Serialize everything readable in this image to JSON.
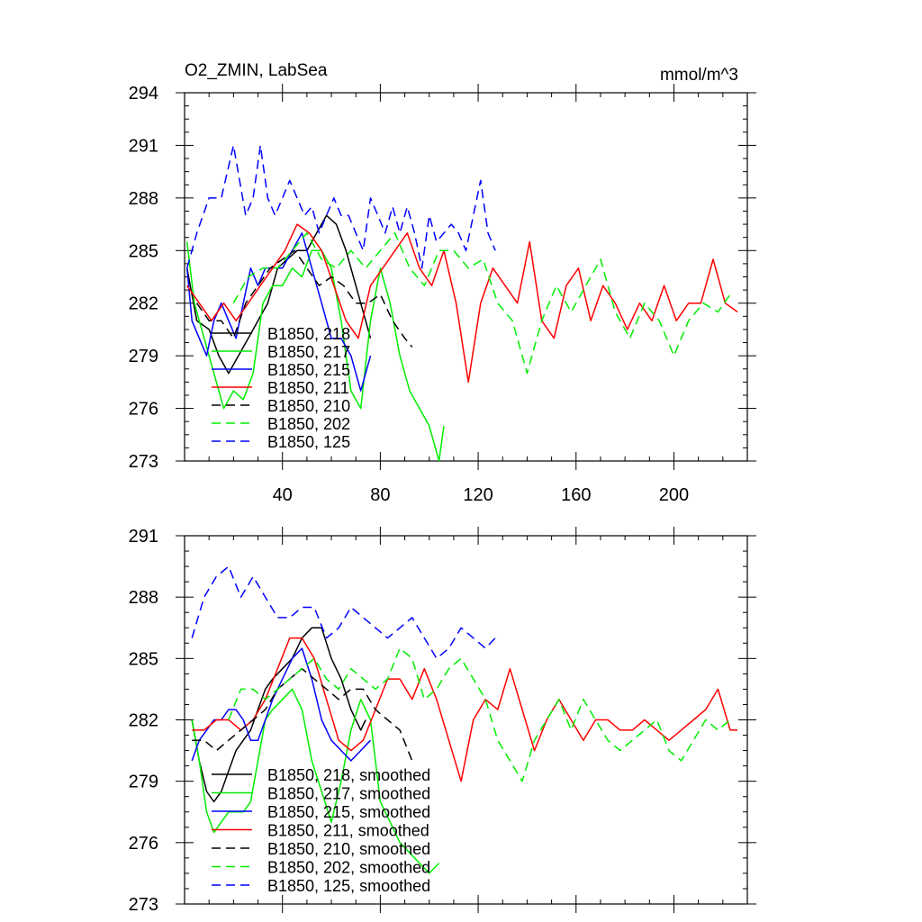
{
  "chart_data": [
    {
      "type": "line",
      "title": "O2_ZMIN, LabSea",
      "units": "mmol/m^3",
      "xlim": [
        0,
        230
      ],
      "ylim": [
        273,
        294
      ],
      "xticks": [
        40,
        80,
        120,
        160,
        200
      ],
      "yticks": [
        273,
        276,
        279,
        282,
        285,
        288,
        291,
        294
      ],
      "legend": "lower-left",
      "series": [
        {
          "name": "B1850, 218",
          "color": "#000000",
          "dash": "solid",
          "x": [
            1,
            5,
            10,
            14,
            18,
            22,
            26,
            30,
            34,
            38,
            42,
            46,
            50,
            54,
            58,
            62,
            66,
            70,
            74,
            76
          ],
          "y": [
            284,
            281,
            280.5,
            279,
            278,
            279,
            280,
            281,
            282,
            284,
            284.5,
            285,
            285,
            286,
            287,
            286.5,
            285,
            283,
            281,
            280
          ]
        },
        {
          "name": "B1850, 217",
          "color": "#00ee00",
          "dash": "solid",
          "x": [
            1,
            4,
            8,
            12,
            16,
            20,
            24,
            28,
            32,
            36,
            40,
            44,
            48,
            52,
            56,
            60,
            64,
            68,
            72,
            76,
            80,
            84,
            88,
            92,
            96,
            100,
            104,
            106
          ],
          "y": [
            285.5,
            282,
            280,
            278,
            276,
            277,
            276.5,
            278,
            282,
            283,
            283,
            284,
            283.5,
            285,
            285,
            284,
            281,
            277,
            276,
            281,
            284,
            282,
            279,
            277,
            276,
            275,
            273,
            275
          ]
        },
        {
          "name": "B1850, 215",
          "color": "#0000ff",
          "dash": "solid",
          "x": [
            1,
            3,
            6,
            9,
            12,
            15,
            18,
            21,
            24,
            27,
            30,
            33,
            36,
            40,
            44,
            48,
            52,
            56,
            60,
            64,
            68,
            72,
            76
          ],
          "y": [
            284,
            281,
            280,
            279,
            281,
            282,
            281,
            280,
            282,
            284,
            283,
            284,
            284,
            284,
            285,
            286,
            284,
            282,
            280,
            280,
            279,
            277,
            279
          ]
        },
        {
          "name": "B1850, 211",
          "color": "#ff0000",
          "dash": "solid",
          "x": [
            1,
            6,
            11,
            16,
            21,
            26,
            31,
            36,
            41,
            46,
            51,
            56,
            61,
            66,
            71,
            76,
            81,
            86,
            91,
            96,
            101,
            106,
            111,
            116,
            121,
            126,
            131,
            136,
            141,
            146,
            151,
            156,
            161,
            166,
            171,
            176,
            181,
            186,
            191,
            196,
            201,
            206,
            211,
            216,
            221,
            226
          ],
          "y": [
            283,
            282,
            281,
            282,
            281,
            282,
            283,
            284,
            285,
            286.5,
            286,
            285,
            283,
            281,
            280,
            283,
            284,
            285,
            286,
            284,
            283,
            285,
            282,
            277.5,
            282,
            284,
            283,
            282,
            285.5,
            281,
            280,
            283,
            284,
            281,
            283,
            282,
            280.5,
            282,
            281,
            283,
            281,
            282,
            282,
            284.5,
            282,
            281.5
          ]
        },
        {
          "name": "B1850, 210",
          "color": "#000000",
          "dash": "dashed",
          "x": [
            5,
            10,
            15,
            20,
            25,
            30,
            35,
            40,
            45,
            50,
            55,
            60,
            65,
            70,
            75,
            80,
            85,
            90,
            93
          ],
          "y": [
            282,
            281,
            281,
            280,
            282,
            283,
            284,
            284.5,
            285,
            284,
            283,
            283.5,
            283,
            282,
            282,
            282.5,
            281,
            280,
            279.5
          ]
        },
        {
          "name": "B1850, 202",
          "color": "#00ee00",
          "dash": "dashed",
          "x": [
            20,
            26,
            32,
            38,
            44,
            50,
            56,
            62,
            68,
            74,
            80,
            86,
            92,
            98,
            104,
            110,
            116,
            122,
            128,
            134,
            140,
            146,
            152,
            158,
            164,
            170,
            176,
            182,
            188,
            194,
            200,
            206,
            212,
            218,
            223
          ],
          "y": [
            282,
            283.5,
            284,
            284,
            285,
            286,
            284.5,
            284,
            285,
            284,
            285,
            286,
            284,
            283,
            285,
            285,
            284,
            284.5,
            282,
            281,
            278,
            281,
            283,
            281.5,
            283,
            284.5,
            281.5,
            280,
            282,
            281,
            279,
            281,
            282,
            281.5,
            282.5
          ]
        },
        {
          "name": "B1850, 125",
          "color": "#0000ff",
          "dash": "dashed",
          "x": [
            1,
            5,
            10,
            15,
            20,
            25,
            28,
            31,
            34,
            37,
            40,
            43,
            46,
            49,
            52,
            55,
            58,
            61,
            64,
            67,
            70,
            73,
            76,
            79,
            82,
            85,
            88,
            91,
            94,
            97,
            100,
            103,
            106,
            109,
            112,
            115,
            118,
            121,
            124,
            127
          ],
          "y": [
            284,
            286,
            288,
            288,
            291,
            287,
            288,
            291,
            288,
            287,
            288,
            289,
            288,
            287,
            287.5,
            286,
            287,
            288,
            287,
            287,
            286,
            285,
            288,
            287,
            286,
            287.5,
            286,
            287.5,
            286,
            284,
            287,
            285.5,
            286,
            286.5,
            286,
            285,
            287,
            289,
            286,
            285
          ]
        }
      ]
    },
    {
      "type": "line",
      "xlim": [
        0,
        230
      ],
      "ylim": [
        273,
        291
      ],
      "yticks": [
        273,
        276,
        279,
        282,
        285,
        288,
        291
      ],
      "legend": "lower-left",
      "series": [
        {
          "name": "B1850, 218, smoothed",
          "color": "#000000",
          "dash": "solid",
          "x": [
            3,
            6,
            9,
            12,
            15,
            18,
            21,
            24,
            27,
            30,
            33,
            36,
            40,
            44,
            48,
            52,
            56,
            60,
            64,
            68,
            72,
            74
          ],
          "y": [
            282,
            280,
            278.5,
            278,
            278.5,
            279.5,
            280.5,
            281,
            281.5,
            282.5,
            283.5,
            284,
            284.5,
            285,
            286,
            286.5,
            286.5,
            285,
            284,
            282.5,
            281.5,
            282
          ]
        },
        {
          "name": "B1850, 217, smoothed",
          "color": "#00ee00",
          "dash": "solid",
          "x": [
            3,
            6,
            9,
            12,
            15,
            18,
            21,
            24,
            27,
            30,
            33,
            36,
            40,
            44,
            48,
            52,
            56,
            60,
            64,
            68,
            72,
            76,
            80,
            84,
            88,
            92,
            96,
            100,
            104
          ],
          "y": [
            282,
            280,
            277.5,
            276.5,
            277,
            277.5,
            277.5,
            277.5,
            278,
            280,
            282,
            282.5,
            283,
            283.5,
            282.5,
            280,
            278.5,
            277,
            279,
            281.5,
            283,
            282,
            278,
            277,
            276,
            275.5,
            275,
            274.5,
            275
          ]
        },
        {
          "name": "B1850, 215, smoothed",
          "color": "#0000ff",
          "dash": "solid",
          "x": [
            3,
            6,
            9,
            12,
            15,
            18,
            21,
            24,
            27,
            30,
            33,
            36,
            40,
            44,
            48,
            52,
            56,
            60,
            64,
            68,
            72,
            76
          ],
          "y": [
            280,
            281,
            281.5,
            282,
            282,
            282.5,
            282.5,
            282,
            281,
            281,
            282,
            283,
            284,
            285,
            285.5,
            284,
            282,
            281,
            280.5,
            280,
            280.5,
            281
          ]
        },
        {
          "name": "B1850, 211, smoothed",
          "color": "#ff0000",
          "dash": "solid",
          "x": [
            3,
            8,
            13,
            18,
            23,
            28,
            33,
            38,
            43,
            48,
            53,
            58,
            63,
            68,
            73,
            78,
            83,
            88,
            93,
            98,
            103,
            108,
            113,
            118,
            123,
            128,
            133,
            138,
            143,
            148,
            153,
            158,
            163,
            168,
            173,
            178,
            183,
            188,
            193,
            198,
            203,
            208,
            213,
            218,
            223,
            226
          ],
          "y": [
            281.5,
            281.5,
            282,
            282,
            281.5,
            282,
            283,
            284.5,
            286,
            286,
            285,
            283,
            281,
            280.5,
            281,
            282.5,
            284,
            284,
            283,
            284.5,
            283,
            281,
            279,
            282,
            283,
            282.5,
            284.5,
            282.5,
            280.5,
            282,
            283,
            282,
            281,
            282,
            282,
            281.5,
            281.5,
            282,
            281.5,
            281,
            281.5,
            282,
            282.5,
            283.5,
            281.5,
            281.5
          ]
        },
        {
          "name": "B1850, 210, smoothed",
          "color": "#000000",
          "dash": "dashed",
          "x": [
            3,
            8,
            13,
            18,
            23,
            28,
            33,
            38,
            43,
            48,
            53,
            58,
            63,
            68,
            73,
            78,
            83,
            88,
            93
          ],
          "y": [
            281,
            281,
            280.5,
            281,
            281.5,
            282,
            282.5,
            283.5,
            284,
            284.5,
            284,
            283.5,
            283,
            283.5,
            283.5,
            282.5,
            282,
            281.5,
            280
          ]
        },
        {
          "name": "B1850, 202, smoothed",
          "color": "#00ee00",
          "dash": "dashed",
          "x": [
            18,
            23,
            28,
            33,
            38,
            43,
            48,
            53,
            58,
            63,
            68,
            73,
            78,
            83,
            88,
            93,
            98,
            103,
            108,
            113,
            118,
            123,
            128,
            133,
            138,
            143,
            148,
            153,
            158,
            163,
            168,
            173,
            178,
            183,
            188,
            193,
            198,
            203,
            208,
            213,
            218,
            223
          ],
          "y": [
            282,
            283.5,
            283.5,
            283,
            283.5,
            284,
            284.5,
            285,
            284,
            283.5,
            284.5,
            284,
            283.5,
            284,
            285.5,
            285,
            283,
            283.5,
            284.5,
            285,
            284,
            283,
            281,
            280,
            279,
            281,
            282,
            283,
            281.5,
            283,
            282,
            281,
            280.5,
            281,
            281.5,
            282,
            280.5,
            280,
            281,
            282,
            281.5,
            282
          ]
        },
        {
          "name": "B1850, 125, smoothed",
          "color": "#0000ff",
          "dash": "dashed",
          "x": [
            3,
            8,
            13,
            18,
            23,
            28,
            33,
            38,
            43,
            48,
            53,
            58,
            63,
            68,
            73,
            78,
            83,
            88,
            93,
            98,
            103,
            108,
            113,
            118,
            123,
            127
          ],
          "y": [
            286,
            288,
            289,
            289.5,
            288,
            289,
            288,
            287,
            287,
            287.5,
            287.5,
            286,
            286.5,
            287.5,
            287,
            286.5,
            286,
            286.5,
            287,
            286,
            285,
            285.5,
            286.5,
            286,
            285.5,
            286
          ]
        }
      ]
    }
  ]
}
